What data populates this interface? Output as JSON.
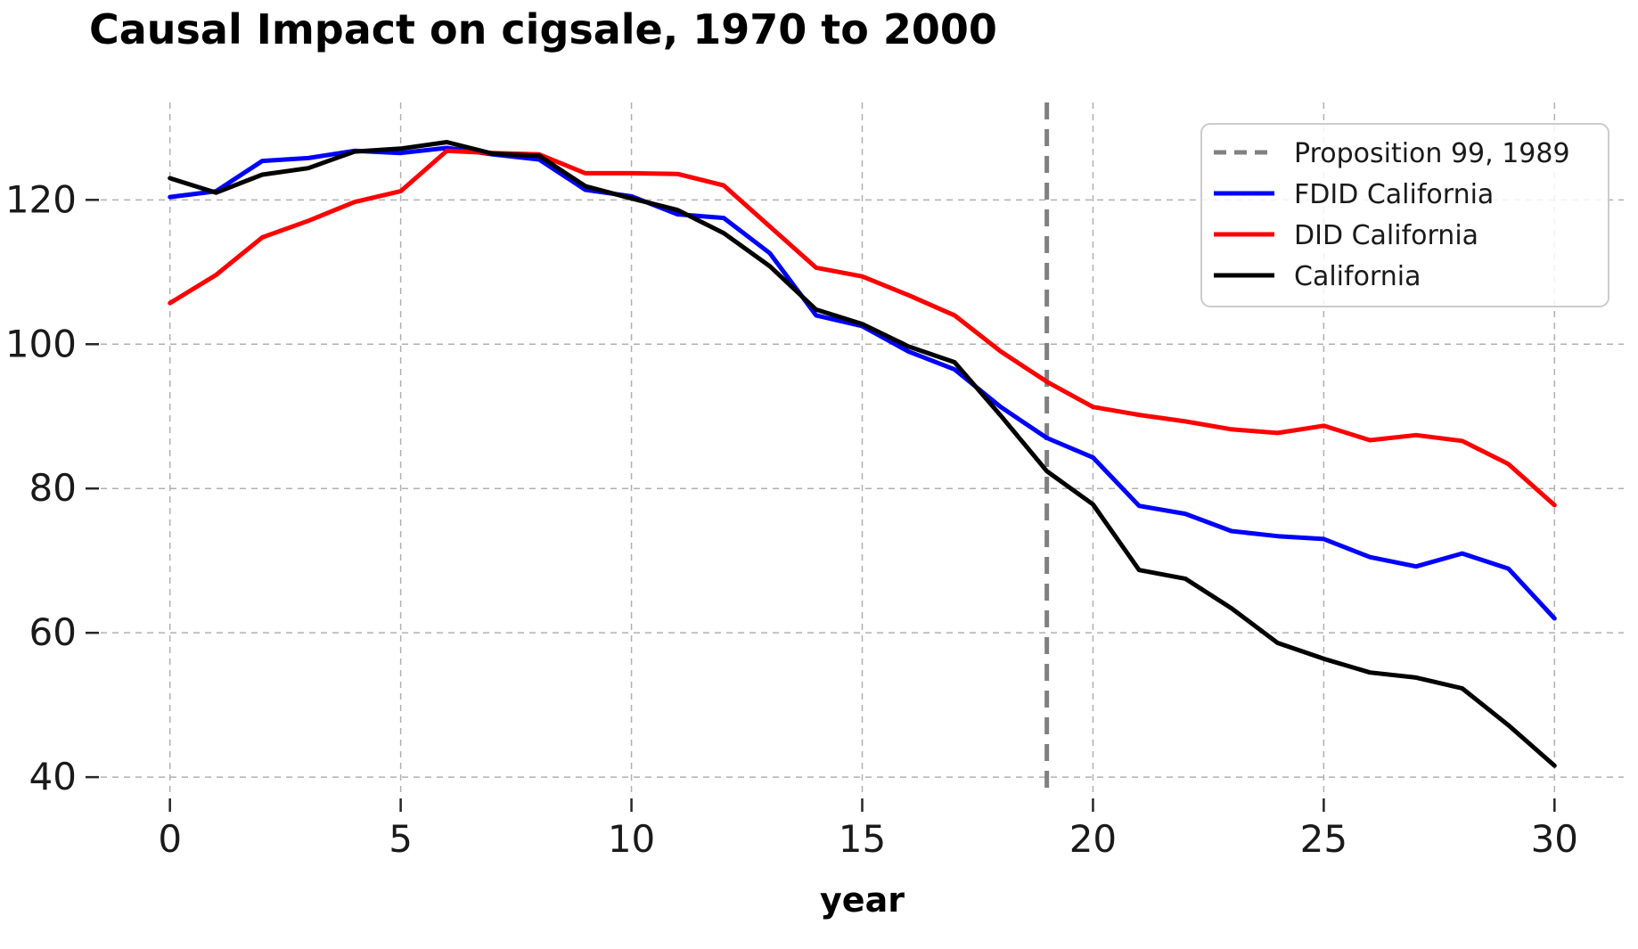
{
  "chart_data": {
    "type": "line",
    "title": "Causal Impact on cigsale, 1970 to 2000",
    "xlabel": "year",
    "ylabel": "",
    "x": [
      0,
      1,
      2,
      3,
      4,
      5,
      6,
      7,
      8,
      9,
      10,
      11,
      12,
      13,
      14,
      15,
      16,
      17,
      18,
      19,
      20,
      21,
      22,
      23,
      24,
      25,
      26,
      27,
      28,
      29,
      30
    ],
    "series": [
      {
        "name": "FDID California",
        "color": "#0000ff",
        "values": [
          120.4,
          121.2,
          125.4,
          125.8,
          126.8,
          126.5,
          127.2,
          126.3,
          125.6,
          121.4,
          120.5,
          118.0,
          117.5,
          112.6,
          104.0,
          102.5,
          99.0,
          96.5,
          91.3,
          87.0,
          84.3,
          77.6,
          76.5,
          74.1,
          73.4,
          73.0,
          70.5,
          69.2,
          71.0,
          68.9,
          62.0
        ]
      },
      {
        "name": "DID California",
        "color": "#ff0000",
        "values": [
          105.7,
          109.6,
          114.8,
          117.1,
          119.7,
          121.2,
          126.8,
          126.5,
          126.3,
          123.7,
          123.7,
          123.6,
          122.0,
          116.3,
          110.6,
          109.4,
          106.8,
          104.0,
          99.0,
          94.8,
          91.3,
          90.2,
          89.3,
          88.2,
          87.7,
          88.7,
          86.7,
          87.4,
          86.6,
          83.4,
          77.7
        ]
      },
      {
        "name": "California",
        "color": "#000000",
        "values": [
          123.0,
          121.0,
          123.5,
          124.4,
          126.7,
          127.1,
          128.0,
          126.4,
          126.1,
          121.9,
          120.2,
          118.6,
          115.4,
          110.8,
          104.8,
          102.8,
          99.7,
          97.5,
          90.1,
          82.4,
          77.8,
          68.7,
          67.5,
          63.4,
          58.6,
          56.4,
          54.5,
          53.8,
          52.3,
          47.2,
          41.6
        ]
      }
    ],
    "vline": {
      "x": 19,
      "label": "Proposition 99, 1989",
      "color": "#808080",
      "style": "dashed"
    },
    "xticks": [
      0,
      5,
      10,
      15,
      20,
      25,
      30
    ],
    "yticks": [
      40,
      60,
      80,
      100,
      120
    ],
    "xlim": [
      -1.5,
      31.5
    ],
    "ylim": [
      37.3,
      133.5
    ],
    "grid": true,
    "legend_position": "upper right"
  },
  "legend": {
    "entries": [
      {
        "label": "Proposition 99, 1989",
        "color": "#808080",
        "dashed": true
      },
      {
        "label": "FDID California",
        "color": "#0000ff",
        "dashed": false
      },
      {
        "label": "DID California",
        "color": "#ff0000",
        "dashed": false
      },
      {
        "label": "California",
        "color": "#000000",
        "dashed": false
      }
    ]
  },
  "style": {
    "gridline_color": "#b0b0b0",
    "tick_color": "#262626",
    "text_color": "#1a1a1a"
  }
}
